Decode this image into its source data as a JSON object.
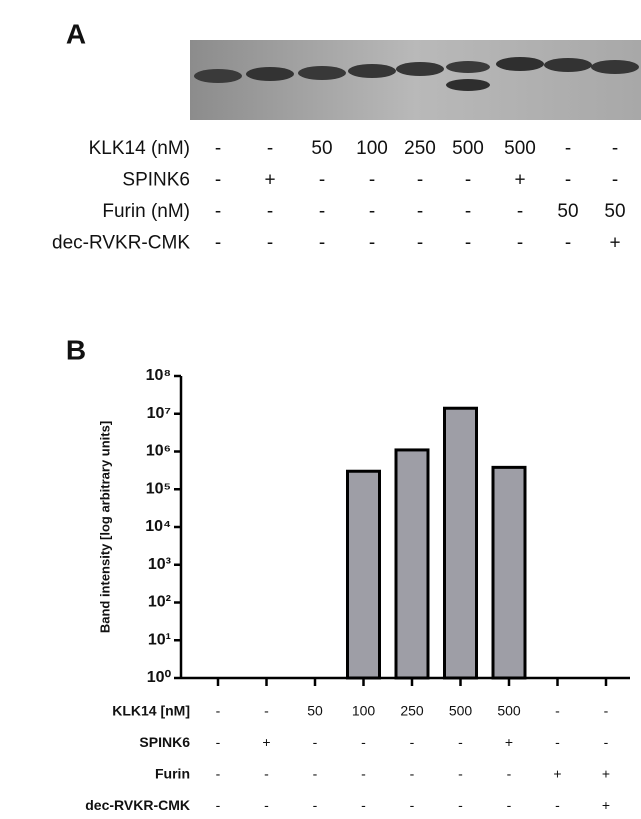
{
  "panel_a": {
    "label": "A",
    "rows": [
      {
        "label": "KLK14 (nM)",
        "cells": [
          "-",
          "-",
          "50",
          "100",
          "250",
          "500",
          "500",
          "-",
          "-"
        ]
      },
      {
        "label": "SPINK6",
        "cells": [
          "-",
          "+",
          "-",
          "-",
          "-",
          "-",
          "+",
          "-",
          "-"
        ]
      },
      {
        "label": "Furin (nM)",
        "cells": [
          "-",
          "-",
          "-",
          "-",
          "-",
          "-",
          "-",
          "50",
          "50"
        ]
      },
      {
        "label": "dec-RVKR-CMK",
        "cells": [
          "-",
          "-",
          "-",
          "-",
          "-",
          "-",
          "-",
          "-",
          "+"
        ]
      }
    ]
  },
  "chart_data": {
    "type": "bar",
    "panel_label": "B",
    "y_label": "Band intensity [log arbitrary units]",
    "values": [
      null,
      null,
      null,
      300000,
      1100000,
      14000000,
      380000,
      null,
      null
    ],
    "color": "#9e9ea6",
    "log_scale": true,
    "ylim": [
      1,
      100000000
    ],
    "yticks": [
      {
        "value": 1,
        "label": "10⁰"
      },
      {
        "value": 10,
        "label": "10¹"
      },
      {
        "value": 100,
        "label": "10²"
      },
      {
        "value": 1000,
        "label": "10³"
      },
      {
        "value": 10000,
        "label": "10⁴"
      },
      {
        "value": 100000,
        "label": "10⁵"
      },
      {
        "value": 1000000,
        "label": "10⁶"
      },
      {
        "value": 10000000,
        "label": "10⁷"
      },
      {
        "value": 100000000,
        "label": "10⁸"
      }
    ],
    "conditions": [
      {
        "label": "KLK14 [nM]",
        "cells": [
          "-",
          "-",
          "50",
          "100",
          "250",
          "500",
          "500",
          "-",
          "-"
        ]
      },
      {
        "label": "SPINK6",
        "cells": [
          "-",
          "+",
          "-",
          "-",
          "-",
          "-",
          "+",
          "-",
          "-"
        ]
      },
      {
        "label": "Furin",
        "cells": [
          "-",
          "-",
          "-",
          "-",
          "-",
          "-",
          "-",
          "+",
          "+"
        ]
      },
      {
        "label": "dec-RVKR-CMK",
        "cells": [
          "-",
          "-",
          "-",
          "-",
          "-",
          "-",
          "-",
          "-",
          "+"
        ]
      }
    ]
  }
}
